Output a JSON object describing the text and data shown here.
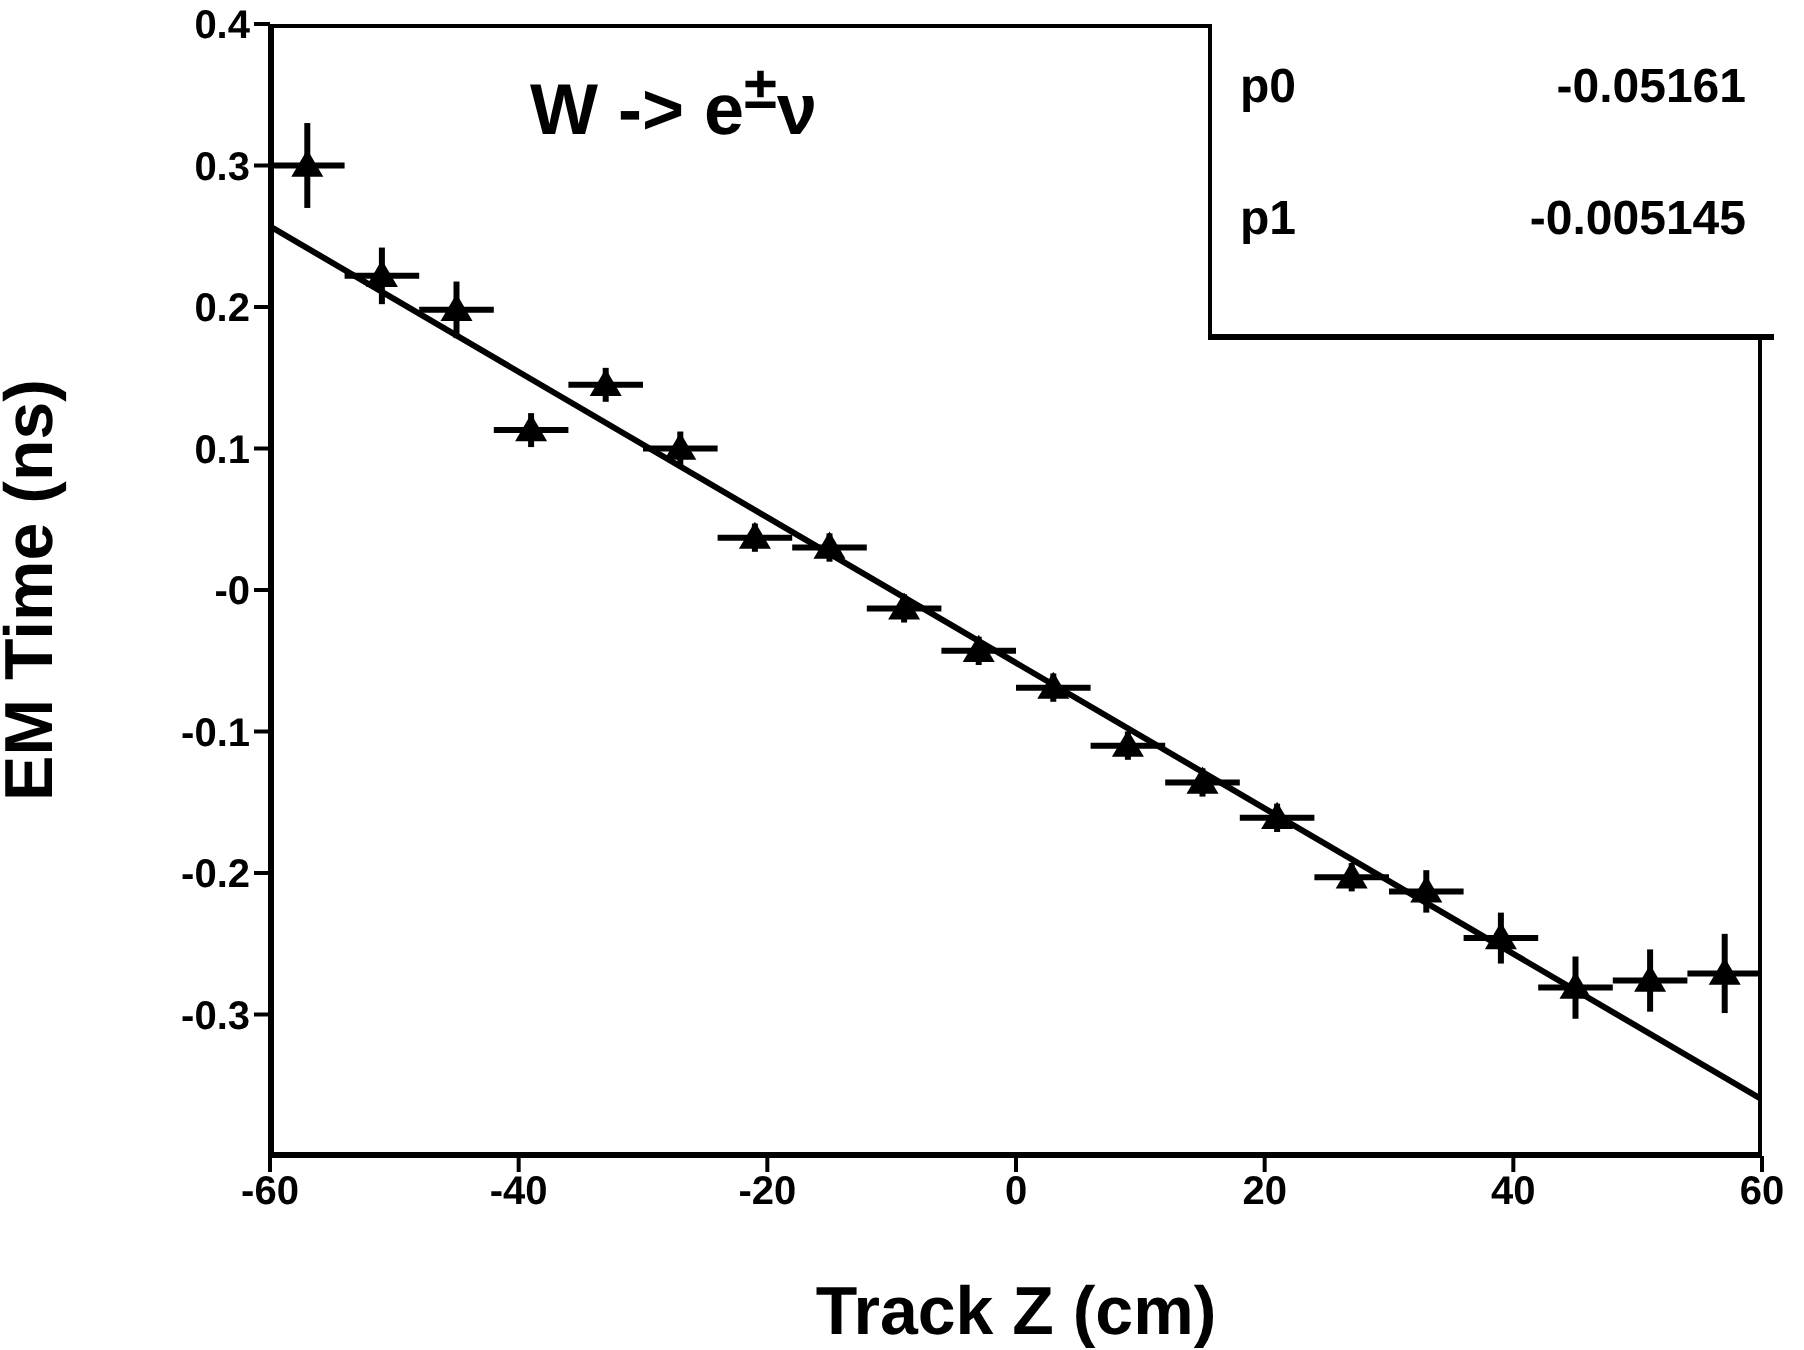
{
  "chart_data": {
    "type": "scatter",
    "title": "W -> e$^{±}$ν",
    "xlabel": "Track Z (cm)",
    "ylabel": "EM Time (ns)",
    "x": [
      -57,
      -51,
      -45,
      -39,
      -33,
      -27,
      -21,
      -15,
      -9,
      -3,
      3,
      9,
      15,
      21,
      27,
      33,
      39,
      45,
      51,
      57
    ],
    "series": [
      {
        "color": "#000000",
        "marker": "triangle",
        "values": [
          0.3,
          0.222,
          0.198,
          0.113,
          0.145,
          0.1,
          0.037,
          0.03,
          -0.013,
          -0.043,
          -0.069,
          -0.11,
          -0.136,
          -0.161,
          -0.203,
          -0.213,
          -0.246,
          -0.281,
          -0.276,
          -0.271
        ],
        "errors": [
          0.03,
          0.02,
          0.02,
          0.012,
          0.012,
          0.012,
          0.01,
          0.01,
          0.01,
          0.01,
          0.01,
          0.01,
          0.01,
          0.01,
          0.01,
          0.015,
          0.018,
          0.022,
          0.022,
          0.028
        ],
        "xerrors": [
          3,
          3,
          3,
          3,
          3,
          3,
          3,
          3,
          3,
          3,
          3,
          3,
          3,
          3,
          3,
          3,
          3,
          3,
          3,
          3
        ]
      },
      {
        "type": "line",
        "color": "#000000",
        "x": [
          -60,
          60
        ],
        "values": [
          0.257,
          -0.36
        ],
        "line_style": "solid",
        "marker": "none"
      }
    ],
    "xlim": [
      -60,
      60
    ],
    "xticks": [
      -60,
      -40,
      -20,
      0,
      20,
      40,
      60
    ],
    "ylim": [
      -0.4,
      0.4
    ],
    "yticks": [
      {
        "value": -0.3,
        "label": "-0.3"
      },
      {
        "value": -0.2,
        "label": "-0.2"
      },
      {
        "value": -0.1,
        "label": "-0.1"
      },
      {
        "value": 0,
        "label": "-0"
      },
      {
        "value": 0.1,
        "label": "0.1"
      },
      {
        "value": 0.2,
        "label": "0.2"
      },
      {
        "value": 0.3,
        "label": "0.3"
      },
      {
        "value": 0.4,
        "label": "0.4"
      }
    ],
    "annotations": [
      "p0",
      "-0.05161",
      "p1",
      "-0.005145"
    ],
    "grid": false,
    "legend": false
  }
}
